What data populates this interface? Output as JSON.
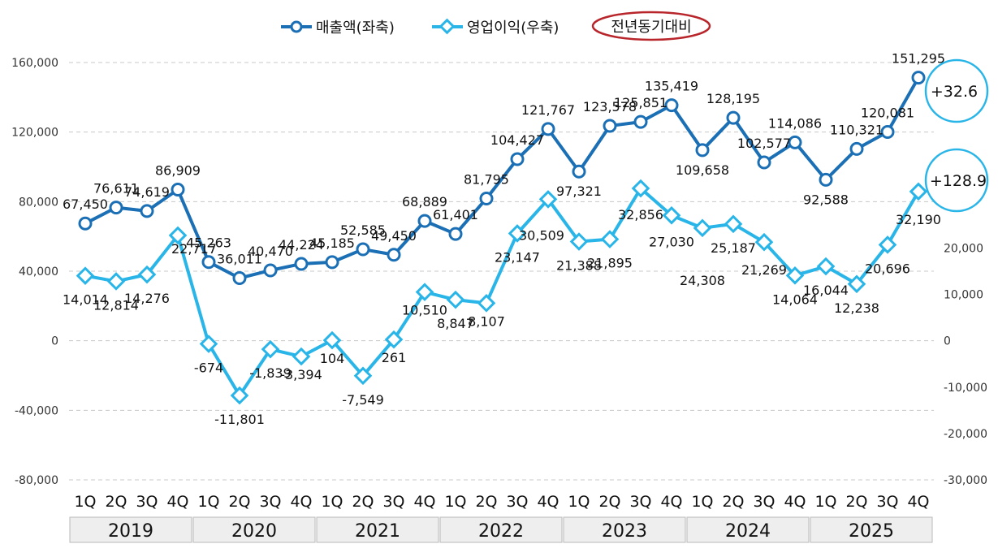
{
  "chart_data": {
    "type": "line",
    "legend": {
      "placement": "top-center",
      "entries": [
        "매출액(좌축)",
        "영업이익(우축)"
      ],
      "note": "전년동기대비"
    },
    "categories": [
      "1Q",
      "2Q",
      "3Q",
      "4Q",
      "1Q",
      "2Q",
      "3Q",
      "4Q",
      "1Q",
      "2Q",
      "3Q",
      "4Q",
      "1Q",
      "2Q",
      "3Q",
      "4Q",
      "1Q",
      "2Q",
      "3Q",
      "4Q",
      "1Q",
      "2Q",
      "3Q",
      "4Q",
      "1Q",
      "2Q",
      "3Q",
      "4Q"
    ],
    "years": [
      "2019",
      "2020",
      "2021",
      "2022",
      "2023",
      "2024",
      "2025"
    ],
    "series": [
      {
        "name": "매출액(좌축)",
        "axis": "left",
        "color": "#1a6fb5",
        "values": [
          67450,
          76611,
          74619,
          86909,
          45263,
          36011,
          40470,
          44224,
          45185,
          52585,
          49450,
          68889,
          61401,
          81795,
          104427,
          121767,
          97321,
          123578,
          125851,
          135419,
          109658,
          128195,
          102577,
          114086,
          92588,
          110321,
          120081,
          151295
        ],
        "labels": [
          "67,450",
          "76,611",
          "74,619",
          "86,909",
          "45,263",
          "36,011",
          "40,470",
          "44,224",
          "45,185",
          "52,585",
          "49,450",
          "68,889",
          "61,401",
          "81,795",
          "104,427",
          "121,767",
          "97,321",
          "123,578",
          "125,851",
          "135,419",
          "109,658",
          "128,195",
          "102,577",
          "114,086",
          "92,588",
          "110,321",
          "120,081",
          "151,295"
        ]
      },
      {
        "name": "영업이익(우축)",
        "axis": "right",
        "color": "#29b5e8",
        "values": [
          14014,
          12814,
          14276,
          22717,
          -674,
          -11801,
          -1839,
          -3394,
          104,
          -7549,
          261,
          10510,
          8847,
          8107,
          23147,
          30509,
          21388,
          21895,
          32856,
          27030,
          24308,
          25187,
          21269,
          14064,
          16044,
          12238,
          20696,
          32190
        ],
        "labels": [
          "14,014",
          "12,814",
          "14,276",
          "22,717",
          "-674",
          "-11,801",
          "-1,839",
          "-3,394",
          "104",
          "-7,549",
          "261",
          "10,510",
          "8,847",
          "8,107",
          "23,147",
          "30,509",
          "21,388",
          "21,895",
          "32,856",
          "27,030",
          "24,308",
          "25,187",
          "21,269",
          "14,064",
          "16,044",
          "12,238",
          "20,696",
          "32,190"
        ]
      }
    ],
    "left_axis": {
      "ylim": [
        -80000,
        160000
      ],
      "ticks": [
        -80000,
        -40000,
        0,
        40000,
        80000,
        120000,
        160000
      ],
      "tick_labels": [
        "-80,000",
        "-40,000",
        "0",
        "40,000",
        "80,000",
        "120,000",
        "160,000"
      ]
    },
    "right_axis": {
      "ylim": [
        -30000,
        60000
      ],
      "ticks": [
        -30000,
        -20000,
        -10000,
        0,
        10000,
        20000
      ],
      "tick_labels": [
        "-30,000",
        "-20,000",
        "-10,000",
        "0",
        "10,000",
        "20,000"
      ]
    },
    "grid": "horizontal-dashed",
    "annotations": [
      {
        "text": "+32.6",
        "series": "매출액(좌축)"
      },
      {
        "text": "+128.9",
        "series": "영업이익(우축)"
      }
    ]
  }
}
